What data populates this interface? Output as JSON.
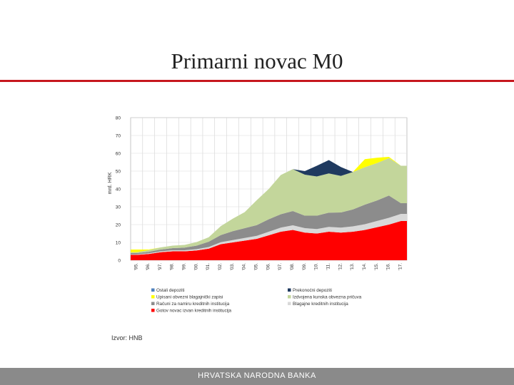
{
  "slide": {
    "title": "Primarni novac M0",
    "source": "Izvor: HNB",
    "footer": "HRVATSKA NARODNA BANKA"
  },
  "chart_data": {
    "type": "area",
    "stacked": true,
    "title": "",
    "ylabel": "mrd. HRK",
    "ylim": [
      0,
      80
    ],
    "yticks": [
      0,
      10,
      20,
      30,
      40,
      50,
      60,
      70,
      80
    ],
    "grid": true,
    "legend_position": "bottom",
    "categories": [
      "'95.",
      "'96.",
      "'97.",
      "'98.",
      "'99.",
      "'00.",
      "'01.",
      "'02.",
      "'03.",
      "'04.",
      "'05.",
      "'06.",
      "'07.",
      "'08.",
      "'09.",
      "'10.",
      "'11.",
      "'12.",
      "'13.",
      "'14.",
      "'15.",
      "'16.",
      "'17."
    ],
    "series": [
      {
        "name": "Gotov novac izvan kreditnih institucija",
        "color": "#ff0000",
        "values": [
          3,
          3.5,
          4.5,
          5,
          5,
          5.5,
          6.5,
          9,
          10,
          11,
          12,
          14,
          16,
          17,
          15.5,
          15,
          16,
          15.5,
          16,
          17,
          18.5,
          20,
          22
        ]
      },
      {
        "name": "Blagajne kreditnih institucija",
        "color": "#d9d9d9",
        "values": [
          0.3,
          0.4,
          0.5,
          0.6,
          0.6,
          0.7,
          0.9,
          1.1,
          1.3,
          1.5,
          1.7,
          2,
          2.3,
          2.6,
          2.5,
          2.5,
          2.7,
          2.8,
          3,
          3.2,
          3.5,
          3.8,
          4
        ]
      },
      {
        "name": "Računi za namiru kreditnih institucija",
        "color": "#8c8c8c",
        "values": [
          0.7,
          0.8,
          1,
          1.2,
          1.5,
          2,
          3,
          4,
          5,
          5.5,
          6,
          7,
          7.5,
          8,
          7,
          7.5,
          8,
          8.5,
          9.5,
          11,
          11.5,
          12.5,
          6
        ]
      },
      {
        "name": "Izdvojena kunska obvezna pričuva",
        "color": "#c3d69b",
        "values": [
          0.5,
          1,
          1.2,
          1.4,
          1.5,
          2,
          2.5,
          5,
          7,
          9,
          14,
          17,
          22,
          23.5,
          23,
          22,
          22,
          20.5,
          21,
          21,
          21,
          21,
          21
        ]
      },
      {
        "name": "Upisani obvezni blagajnički zapisi",
        "color": "#ffff00",
        "values": [
          1.5,
          0.3,
          0,
          0,
          0,
          0,
          0,
          0,
          0,
          0,
          0,
          0,
          0,
          0,
          0,
          0,
          0,
          0,
          0,
          4.5,
          3,
          0.7,
          0
        ]
      },
      {
        "name": "Prekonoćni depoziti",
        "color": "#1f3a5f",
        "values": [
          0,
          0,
          0,
          0,
          0,
          0,
          0,
          0,
          0,
          0,
          0,
          0,
          0,
          0,
          2,
          6,
          7.5,
          5,
          0,
          0,
          0,
          0,
          0
        ]
      },
      {
        "name": "Ostali depoziti",
        "color": "#4f81bd",
        "values": [
          0,
          0,
          0,
          0,
          0,
          0,
          0,
          0,
          0,
          0,
          0,
          0,
          0,
          0,
          0,
          0,
          0,
          0,
          0,
          0,
          0,
          0,
          0
        ]
      }
    ],
    "legend_order": [
      "Ostali depoziti",
      "Prekonoćni depoziti",
      "Upisani obvezni blagajnički zapisi",
      "Izdvojena kunska obvezna pričuva",
      "Računi za namiru kreditnih institucija",
      "Blagajne kreditnih institucija",
      "Gotov novac izvan kreditnih institucija"
    ]
  }
}
